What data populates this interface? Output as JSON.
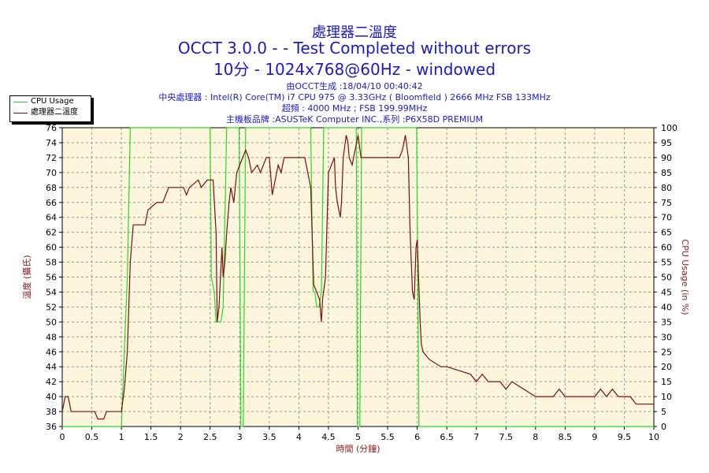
{
  "header": {
    "title_line1": "處理器二溫度",
    "title_line2": "OCCT 3.0.0 -  - Test Completed without errors",
    "title_line3": "10分 - 1024x768@60Hz - windowed",
    "info_lines": [
      "由OCCT生成 :18/04/10 00:40:42",
      "中央處理器 : Intel(R) Core(TM) i7 CPU 975 @ 3.33GHz ( Bloomfield ) 2666 MHz FSB 133MHz",
      "超頻 : 4000 MHz ; FSB 199.99MHz",
      "主機板品牌 :ASUSTeK Computer INC.,系列 :P6X58D PREMIUM"
    ]
  },
  "colors": {
    "plot_bg": "#fdf5dc",
    "grid": "#999999",
    "temp_line": "#7a0f0f",
    "cpu_line": "#22dd22",
    "title": "#1a1acc",
    "axis_label": "#8b1a1a"
  },
  "chart_data": {
    "type": "line",
    "xlabel": "時間 (分鐘)",
    "ylabel": "溫度 (攝氏)",
    "y2label": "CPU Usage (in %)",
    "xlim": [
      0,
      10
    ],
    "ylim": [
      36,
      76
    ],
    "y2lim": [
      0,
      100
    ],
    "x_ticks": [
      0,
      0.5,
      1,
      1.5,
      2,
      2.5,
      3,
      3.5,
      4,
      4.5,
      5,
      5.5,
      6,
      6.5,
      7,
      7.5,
      8,
      8.5,
      9,
      9.5,
      10
    ],
    "y_ticks": [
      36,
      38,
      40,
      42,
      44,
      46,
      48,
      50,
      52,
      54,
      56,
      58,
      60,
      62,
      64,
      66,
      68,
      70,
      72,
      74,
      76
    ],
    "y2_ticks": [
      0,
      5,
      10,
      15,
      20,
      25,
      30,
      35,
      40,
      45,
      50,
      55,
      60,
      65,
      70,
      75,
      80,
      85,
      90,
      95,
      100
    ],
    "grid": true,
    "legend_position": "top-left",
    "series": [
      {
        "name": "CPU Usage",
        "axis": "right",
        "points": [
          [
            0,
            0
          ],
          [
            1.0,
            0
          ],
          [
            1.05,
            25
          ],
          [
            1.1,
            50
          ],
          [
            1.15,
            100
          ],
          [
            2.5,
            100
          ],
          [
            2.52,
            50
          ],
          [
            2.57,
            45
          ],
          [
            2.6,
            35
          ],
          [
            2.68,
            35
          ],
          [
            2.72,
            40
          ],
          [
            2.78,
            100
          ],
          [
            2.99,
            100
          ],
          [
            3.02,
            0
          ],
          [
            3.06,
            0
          ],
          [
            3.1,
            100
          ],
          [
            4.2,
            100
          ],
          [
            4.24,
            45
          ],
          [
            4.27,
            45
          ],
          [
            4.3,
            40
          ],
          [
            4.34,
            40
          ],
          [
            4.38,
            45
          ],
          [
            4.42,
            100
          ],
          [
            4.97,
            100
          ],
          [
            4.99,
            0
          ],
          [
            5.03,
            0
          ],
          [
            5.06,
            100
          ],
          [
            5.99,
            100
          ],
          [
            6.03,
            0
          ],
          [
            10,
            0
          ]
        ]
      },
      {
        "name": "處理器二溫度",
        "axis": "left",
        "points": [
          [
            0,
            38
          ],
          [
            0.05,
            40
          ],
          [
            0.1,
            40
          ],
          [
            0.15,
            38
          ],
          [
            0.55,
            38
          ],
          [
            0.6,
            37
          ],
          [
            0.7,
            37
          ],
          [
            0.75,
            38
          ],
          [
            1.0,
            38
          ],
          [
            1.05,
            41
          ],
          [
            1.1,
            46
          ],
          [
            1.15,
            58
          ],
          [
            1.2,
            63
          ],
          [
            1.4,
            63
          ],
          [
            1.45,
            65
          ],
          [
            1.6,
            66
          ],
          [
            1.7,
            66
          ],
          [
            1.75,
            67
          ],
          [
            1.8,
            68
          ],
          [
            2.05,
            68
          ],
          [
            2.1,
            67
          ],
          [
            2.15,
            68
          ],
          [
            2.3,
            69
          ],
          [
            2.35,
            68
          ],
          [
            2.45,
            69
          ],
          [
            2.55,
            69
          ],
          [
            2.6,
            62
          ],
          [
            2.62,
            50
          ],
          [
            2.65,
            52
          ],
          [
            2.7,
            60
          ],
          [
            2.72,
            56
          ],
          [
            2.75,
            58
          ],
          [
            2.78,
            62
          ],
          [
            2.82,
            66
          ],
          [
            2.85,
            68
          ],
          [
            2.9,
            66
          ],
          [
            2.95,
            70
          ],
          [
            3.0,
            71
          ],
          [
            3.05,
            72
          ],
          [
            3.1,
            73
          ],
          [
            3.15,
            72
          ],
          [
            3.2,
            70
          ],
          [
            3.3,
            71
          ],
          [
            3.35,
            70
          ],
          [
            3.45,
            72
          ],
          [
            3.5,
            72
          ],
          [
            3.55,
            67
          ],
          [
            3.6,
            69
          ],
          [
            3.65,
            71
          ],
          [
            3.7,
            70
          ],
          [
            3.75,
            72
          ],
          [
            3.85,
            72
          ],
          [
            3.95,
            72
          ],
          [
            4.1,
            72
          ],
          [
            4.15,
            70
          ],
          [
            4.2,
            68
          ],
          [
            4.25,
            55
          ],
          [
            4.35,
            53
          ],
          [
            4.38,
            50
          ],
          [
            4.4,
            53
          ],
          [
            4.45,
            56
          ],
          [
            4.5,
            70
          ],
          [
            4.55,
            71
          ],
          [
            4.6,
            72
          ],
          [
            4.62,
            68
          ],
          [
            4.65,
            66
          ],
          [
            4.7,
            64
          ],
          [
            4.72,
            66
          ],
          [
            4.75,
            72
          ],
          [
            4.8,
            75
          ],
          [
            4.83,
            74
          ],
          [
            4.85,
            72
          ],
          [
            4.9,
            71
          ],
          [
            4.95,
            73
          ],
          [
            5.0,
            75
          ],
          [
            5.05,
            72
          ],
          [
            5.1,
            72
          ],
          [
            5.7,
            72
          ],
          [
            5.75,
            73
          ],
          [
            5.8,
            75
          ],
          [
            5.85,
            72
          ],
          [
            5.88,
            62
          ],
          [
            5.92,
            54
          ],
          [
            5.95,
            53
          ],
          [
            5.98,
            60
          ],
          [
            6.0,
            61
          ],
          [
            6.05,
            50
          ],
          [
            6.07,
            47
          ],
          [
            6.1,
            46
          ],
          [
            6.2,
            45
          ],
          [
            6.4,
            44
          ],
          [
            6.5,
            44
          ],
          [
            6.9,
            43
          ],
          [
            7.0,
            42
          ],
          [
            7.1,
            43
          ],
          [
            7.2,
            42
          ],
          [
            7.4,
            42
          ],
          [
            7.5,
            41
          ],
          [
            7.6,
            42
          ],
          [
            7.8,
            41
          ],
          [
            8.0,
            40
          ],
          [
            8.3,
            40
          ],
          [
            8.4,
            41
          ],
          [
            8.5,
            40
          ],
          [
            8.6,
            40
          ],
          [
            9.0,
            40
          ],
          [
            9.1,
            41
          ],
          [
            9.2,
            40
          ],
          [
            9.3,
            41
          ],
          [
            9.4,
            40
          ],
          [
            9.6,
            40
          ],
          [
            9.7,
            39
          ],
          [
            10,
            39
          ]
        ]
      }
    ]
  }
}
